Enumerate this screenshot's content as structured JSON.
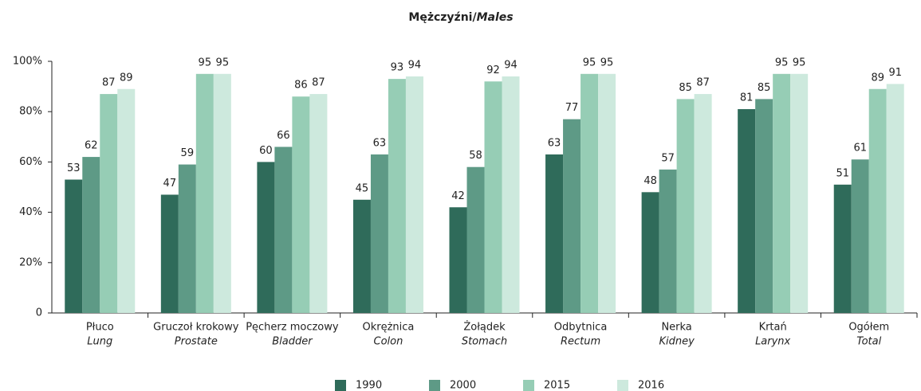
{
  "chart_data": {
    "type": "bar",
    "title": [
      "Mężczyźni/",
      "Males"
    ],
    "categories": [
      "Płuco",
      "Gruczoł krokowy",
      "Pęcherz moczowy",
      "Okrężnica",
      "Żołądek",
      "Odbytnica",
      "Nerka",
      "Krtań",
      "Ogółem"
    ],
    "categories_en": [
      "Lung",
      "Prostate",
      "Bladder",
      "Colon",
      "Stomach",
      "Rectum",
      "Kidney",
      "Larynx",
      "Total"
    ],
    "series": [
      {
        "name": "1990",
        "color": "#2f6b5a",
        "values": [
          53,
          47,
          60,
          45,
          42,
          63,
          48,
          81,
          51
        ]
      },
      {
        "name": "2000",
        "color": "#5e9a86",
        "values": [
          62,
          59,
          66,
          63,
          58,
          77,
          57,
          85,
          61
        ]
      },
      {
        "name": "2015",
        "color": "#96cdb5",
        "values": [
          87,
          95,
          86,
          93,
          92,
          95,
          85,
          95,
          89
        ]
      },
      {
        "name": "2016",
        "color": "#cde9dd",
        "values": [
          89,
          95,
          87,
          94,
          94,
          95,
          87,
          95,
          91
        ]
      }
    ],
    "ylim": [
      0,
      100
    ],
    "yticks": [
      0,
      {
        "value": 20,
        "label": "20%"
      },
      {
        "value": 40,
        "label": "40%"
      },
      {
        "value": 60,
        "label": "60%"
      },
      {
        "value": 80,
        "label": "80%"
      },
      {
        "value": 100,
        "label": "100%"
      }
    ]
  }
}
